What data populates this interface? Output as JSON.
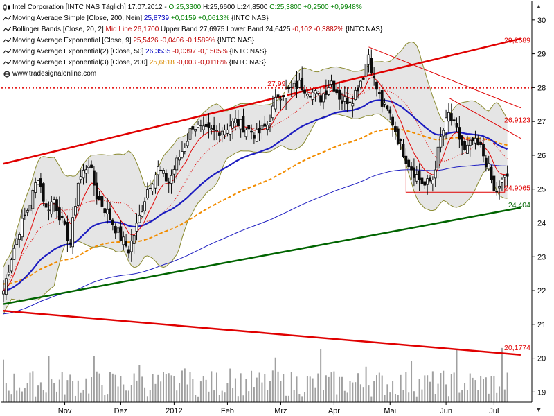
{
  "header": {
    "line1": {
      "instrument": "Intel Corporation [INTC NAS  Täglich]",
      "date": "17.07.2012",
      "open": "O:25,3300",
      "high": "H:25,6600",
      "low": "L:24,8500",
      "close": "C:25,3800",
      "change": "+0,2500",
      "change_pct": "+0,9948%"
    },
    "line2": {
      "name": "Moving Average Simple [Close, 200, Nein]",
      "value": "25,8739",
      "change": "+0,0159",
      "change_pct": "+0,0613%",
      "suffix": "{INTC NAS}"
    },
    "line3": {
      "name": "Bollinger Bands [Close, 20, 2]",
      "mid": "Mid Line 26,1700",
      "upper": "Upper Band 27,6975",
      "lower": "Lower Band 24,6425",
      "change": "-0,102",
      "change_pct": "-0,3882%",
      "suffix": "{INTC NAS}"
    },
    "line4": {
      "name": "Moving Average Exponential [Close, 9]",
      "value": "25,5426",
      "change": "-0,0406",
      "change_pct": "-0,1589%",
      "suffix": "{INTC NAS}"
    },
    "line5": {
      "name": "Moving Average Exponential(2) [Close, 50]",
      "value": "26,3535",
      "change": "-0,0397",
      "change_pct": "-0,1505%",
      "suffix": "{INTC NAS}"
    },
    "line6": {
      "name": "Moving Average Exponential(3) [Close, 200]",
      "value": "25,6818",
      "change": "-0,003",
      "change_pct": "-0,0118%",
      "suffix": "{INTC NAS}"
    },
    "watermark": "www.tradesignalonline.com"
  },
  "scroll_up_icon": "arrow-up-icon",
  "scroll_down_icon": "arrow-down-icon",
  "colors": {
    "candle": "#0a0a0a",
    "bollinger_fill": "#dcdcdc",
    "bollinger_edge": "#8a8a30",
    "ema9": "#e00000",
    "ema50": "#1c1cc0",
    "ema200": "#f28c00",
    "sma200": "#1c1cc0",
    "trend_red": "#e00000",
    "trend_green": "#006400",
    "volume": "#a0a0a0"
  },
  "chart_data": {
    "type": "candlestick",
    "ylim": [
      18.7,
      30.55
    ],
    "yticks": [
      "19",
      "20",
      "21",
      "22",
      "23",
      "24",
      "25",
      "26",
      "27",
      "28",
      "29",
      "30"
    ],
    "xtick_labels": [
      {
        "label": "Nov",
        "day": 23
      },
      {
        "label": "Dez",
        "day": 44
      },
      {
        "label": "2012",
        "day": 64
      },
      {
        "label": "Feb",
        "day": 84
      },
      {
        "label": "Mrz",
        "day": 104
      },
      {
        "label": "Apr",
        "day": 124
      },
      {
        "label": "Mai",
        "day": 145
      },
      {
        "label": "Jun",
        "day": 166
      },
      {
        "label": "Jul",
        "day": 184
      }
    ],
    "days": 190,
    "anchors": [
      [
        0,
        22.0
      ],
      [
        3,
        23.0
      ],
      [
        6,
        23.8
      ],
      [
        10,
        24.6
      ],
      [
        13,
        25.4
      ],
      [
        16,
        24.4
      ],
      [
        19,
        24.7
      ],
      [
        22,
        24.0
      ],
      [
        25,
        23.4
      ],
      [
        28,
        25.2
      ],
      [
        32,
        25.8
      ],
      [
        35,
        24.8
      ],
      [
        39,
        24.3
      ],
      [
        43,
        23.7
      ],
      [
        47,
        23.2
      ],
      [
        50,
        23.9
      ],
      [
        54,
        25.0
      ],
      [
        58,
        25.6
      ],
      [
        62,
        25.2
      ],
      [
        65,
        25.8
      ],
      [
        68,
        26.3
      ],
      [
        71,
        26.9
      ],
      [
        75,
        26.7
      ],
      [
        79,
        26.7
      ],
      [
        83,
        26.8
      ],
      [
        87,
        27.0
      ],
      [
        91,
        26.8
      ],
      [
        95,
        26.6
      ],
      [
        99,
        26.9
      ],
      [
        103,
        27.8
      ],
      [
        107,
        27.9
      ],
      [
        111,
        28.1
      ],
      [
        115,
        27.9
      ],
      [
        119,
        27.7
      ],
      [
        123,
        28.2
      ],
      [
        127,
        27.6
      ],
      [
        131,
        27.7
      ],
      [
        135,
        28.4
      ],
      [
        137,
        29.0
      ],
      [
        139,
        28.2
      ],
      [
        142,
        27.5
      ],
      [
        145,
        27.2
      ],
      [
        148,
        26.5
      ],
      [
        151,
        25.9
      ],
      [
        154,
        25.5
      ],
      [
        158,
        25.1
      ],
      [
        161,
        25.3
      ],
      [
        164,
        26.5
      ],
      [
        167,
        27.2
      ],
      [
        170,
        26.7
      ],
      [
        173,
        26.1
      ],
      [
        176,
        26.4
      ],
      [
        179,
        26.2
      ],
      [
        182,
        25.6
      ],
      [
        184,
        24.9
      ],
      [
        186,
        25.0
      ],
      [
        188,
        25.4
      ]
    ],
    "trendlines": [
      {
        "name": "upper-red-channel",
        "x": [
          0,
          194
        ],
        "y": [
          25.75,
          29.45
        ],
        "color": "#e00000",
        "width": 2.5
      },
      {
        "name": "lower-red-line",
        "x": [
          0,
          194
        ],
        "y": [
          21.4,
          20.1
        ],
        "color": "#e00000",
        "width": 2.5
      },
      {
        "name": "green-support",
        "x": [
          0,
          194
        ],
        "y": [
          21.6,
          24.45
        ],
        "color": "#006400",
        "width": 2.5
      },
      {
        "name": "red-down-trend-1",
        "x": [
          137,
          194
        ],
        "y": [
          29.2,
          27.4
        ],
        "color": "#e00000",
        "width": 1
      },
      {
        "name": "red-down-trend-2",
        "x": [
          167,
          194
        ],
        "y": [
          27.7,
          26.5
        ],
        "color": "#e00000",
        "width": 1
      }
    ],
    "hline_dotted": {
      "y": 27.99,
      "label": "27,99"
    },
    "hline_box": {
      "x": [
        151,
        188
      ],
      "y": 24.9065
    },
    "price_labels": [
      {
        "text": "29,2689",
        "y": 29.2689,
        "color": "#e00000"
      },
      {
        "text": "27,99",
        "y": 27.99,
        "color": "#e00000",
        "day": 99
      },
      {
        "text": "26,9123",
        "y": 26.9123,
        "color": "#e00000"
      },
      {
        "text": "24,9065",
        "y": 24.9065,
        "color": "#e00000"
      },
      {
        "text": "24,404",
        "y": 24.404,
        "color": "#006400"
      },
      {
        "text": "20,1774",
        "y": 20.1774,
        "color": "#e00000"
      }
    ]
  }
}
